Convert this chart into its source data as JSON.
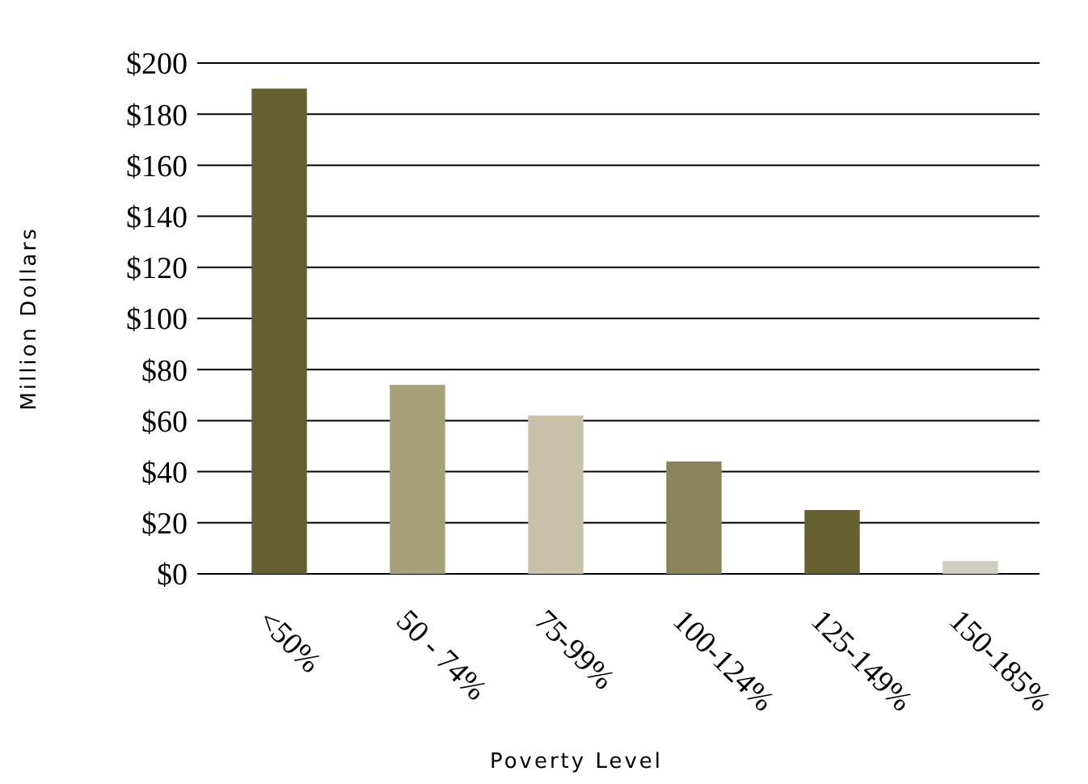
{
  "chart_data": {
    "type": "bar",
    "xlabel": "Poverty Level",
    "ylabel": "Million Dollars",
    "categories": [
      "<50%",
      "50 - 74%",
      "75-99%",
      "100-124%",
      "125-149%",
      "150-185%"
    ],
    "values": [
      190,
      74,
      62,
      44,
      25,
      5
    ],
    "colors": [
      "#666030",
      "#a8a07a",
      "#c8c0a8",
      "#8a8458",
      "#666030",
      "#d0ccc0"
    ],
    "ylim": [
      0,
      200
    ],
    "yticks": [
      {
        "value": 0,
        "label": "$0"
      },
      {
        "value": 20,
        "label": "$20"
      },
      {
        "value": 40,
        "label": "$40"
      },
      {
        "value": 60,
        "label": "$60"
      },
      {
        "value": 80,
        "label": "$80"
      },
      {
        "value": 100,
        "label": "$100"
      },
      {
        "value": 120,
        "label": "$120"
      },
      {
        "value": 140,
        "label": "$140"
      },
      {
        "value": 160,
        "label": "$160"
      },
      {
        "value": 180,
        "label": "$180"
      },
      {
        "value": 200,
        "label": "$200"
      }
    ],
    "grid": "y"
  }
}
